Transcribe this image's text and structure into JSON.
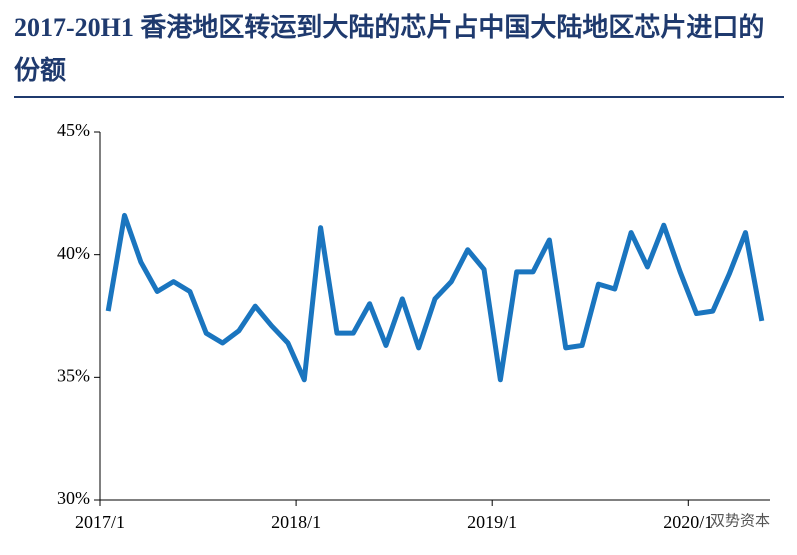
{
  "chart_data": {
    "type": "line",
    "title": "2017-20H1 香港地区转运到大陆的芯片占中国大陆地区芯片进口的份额",
    "categories": [
      "2017/1",
      null,
      null,
      null,
      null,
      null,
      null,
      null,
      null,
      null,
      null,
      null,
      "2018/1",
      null,
      null,
      null,
      null,
      null,
      null,
      null,
      null,
      null,
      null,
      null,
      "2019/1",
      null,
      null,
      null,
      null,
      null,
      null,
      null,
      null,
      null,
      null,
      null,
      "2020/1",
      null,
      null,
      null,
      null
    ],
    "series": [
      {
        "name": "份额",
        "color": "#1a75bf",
        "values": [
          37.7,
          41.6,
          39.7,
          38.5,
          38.9,
          38.5,
          36.8,
          36.4,
          36.9,
          37.9,
          37.1,
          36.4,
          34.9,
          41.1,
          36.8,
          36.8,
          38.0,
          36.3,
          38.2,
          36.2,
          38.2,
          38.9,
          40.2,
          39.4,
          34.9,
          39.3,
          39.3,
          40.6,
          36.2,
          36.3,
          38.8,
          38.6,
          40.9,
          39.5,
          41.2,
          39.3,
          37.6,
          37.7,
          39.2,
          40.9,
          37.3
        ]
      }
    ],
    "ylim": [
      30,
      45
    ],
    "yticks": [
      {
        "value": 30,
        "label": "30%"
      },
      {
        "value": 35,
        "label": "35%"
      },
      {
        "value": 40,
        "label": "40%"
      },
      {
        "value": 45,
        "label": "45%"
      }
    ],
    "watermark": "双势资本"
  }
}
